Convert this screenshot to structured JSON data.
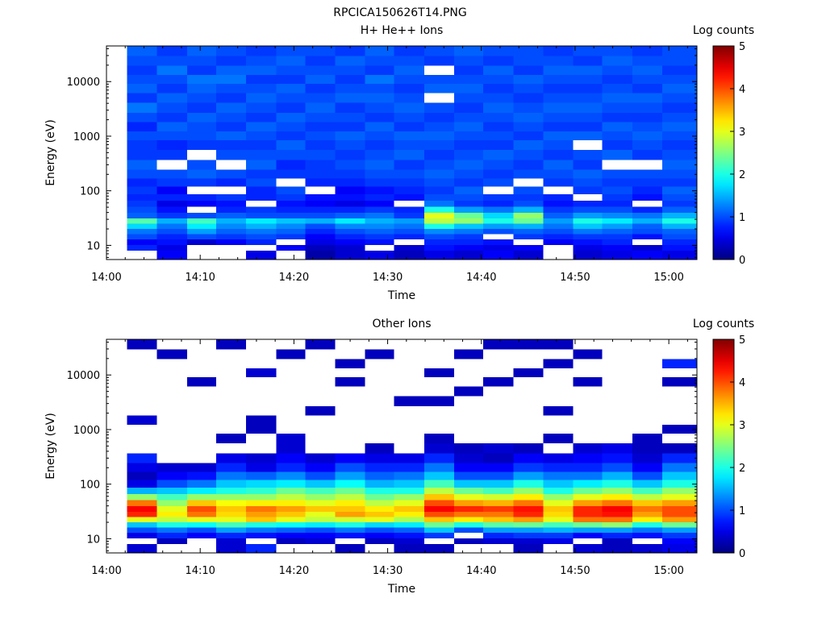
{
  "page_title": "RPCICA150626T14.PNG",
  "chart_data": [
    {
      "type": "heatmap",
      "title": "H+ He++ Ions",
      "xlabel": "Time",
      "ylabel": "Energy (eV)",
      "x_ticks": [
        "14:00",
        "14:10",
        "14:20",
        "14:30",
        "14:40",
        "14:50",
        "15:00"
      ],
      "y_ticks": [
        "10",
        "100",
        "1000",
        "10000"
      ],
      "y_scale": "log",
      "ylim": [
        5.5,
        45000
      ],
      "colorbar": {
        "label": "Log counts",
        "ticks": [
          "0",
          "1",
          "2",
          "3",
          "4",
          "5"
        ],
        "range": [
          0,
          5
        ]
      },
      "time_start": "14:00",
      "time_end": "15:03",
      "scan_start_times": [
        "14:02.2",
        "14:05.4",
        "14:08.6",
        "14:11.7",
        "14:14.9",
        "14:18.1",
        "14:21.2",
        "14:24.4",
        "14:27.6",
        "14:30.7",
        "14:33.9",
        "14:37.1",
        "14:40.2",
        "14:43.4",
        "14:46.6",
        "14:49.8",
        "14:52.9",
        "14:56.1",
        "14:59.3"
      ],
      "energy_levels_eV": [
        7,
        9,
        11.5,
        14.5,
        18,
        22.5,
        28,
        35,
        45,
        58,
        75,
        100,
        140,
        200,
        300,
        450,
        700,
        1000,
        1500,
        2200,
        3300,
        5000,
        7500,
        11000,
        16000,
        24000,
        36000
      ],
      "scans": [
        [
          null,
          0.8,
          0.6,
          1.0,
          1.2,
          1.7,
          2.3,
          1.1,
          1.0,
          0.9,
          0.8,
          0.9,
          0.8,
          1.0,
          1.1,
          0.9,
          0.9,
          1.0,
          0.8,
          1.0,
          1.2,
          0.9,
          1.1,
          1.0,
          0.9,
          1.0,
          1.1
        ],
        [
          0.6,
          0.5,
          0.7,
          0.8,
          1.0,
          1.2,
          1.5,
          0.9,
          0.7,
          0.5,
          0.8,
          0.6,
          0.9,
          1.0,
          null,
          0.9,
          0.8,
          1.0,
          1.1,
          0.9,
          1.0,
          1.1,
          0.9,
          1.0,
          1.2,
          1.0,
          0.9
        ],
        [
          null,
          null,
          0.4,
          1.0,
          1.4,
          1.8,
          2.2,
          1.0,
          null,
          0.6,
          0.8,
          null,
          0.9,
          1.1,
          1.0,
          null,
          0.9,
          1.0,
          1.0,
          1.1,
          0.9,
          1.0,
          1.1,
          1.2,
          0.9,
          1.0,
          1.1
        ],
        [
          null,
          null,
          0.6,
          0.9,
          1.1,
          1.3,
          1.5,
          1.1,
          0.8,
          0.7,
          0.9,
          null,
          0.8,
          1.0,
          null,
          1.0,
          0.9,
          1.1,
          0.9,
          1.0,
          1.1,
          0.9,
          1.0,
          1.2,
          1.1,
          0.9,
          1.0
        ],
        [
          0.5,
          null,
          0.8,
          1.0,
          1.2,
          1.5,
          1.8,
          1.0,
          0.9,
          null,
          0.8,
          0.8,
          1.0,
          0.9,
          1.1,
          1.0,
          0.9,
          1.0,
          1.1,
          0.9,
          1.0,
          1.1,
          1.0,
          0.9,
          1.1,
          1.0,
          0.9
        ],
        [
          null,
          0.6,
          null,
          0.9,
          1.1,
          1.3,
          1.6,
          1.0,
          0.8,
          0.7,
          0.9,
          1.0,
          null,
          0.9,
          0.8,
          1.0,
          1.1,
          0.9,
          1.0,
          1.1,
          0.9,
          1.0,
          1.1,
          0.9,
          1.0,
          1.1,
          1.0
        ],
        [
          0.2,
          0.3,
          0.5,
          0.6,
          0.8,
          1.0,
          1.5,
          1.0,
          0.8,
          0.6,
          0.7,
          null,
          0.8,
          0.9,
          0.9,
          1.0,
          0.9,
          1.0,
          0.9,
          1.0,
          1.1,
          1.0,
          0.9,
          1.1,
          1.0,
          0.9,
          1.0
        ],
        [
          0.4,
          0.4,
          0.6,
          0.8,
          1.0,
          1.3,
          1.8,
          1.1,
          0.8,
          0.5,
          0.7,
          0.6,
          0.8,
          0.9,
          1.0,
          0.9,
          1.0,
          1.1,
          0.9,
          1.0,
          0.9,
          1.1,
          1.0,
          0.9,
          1.0,
          1.1,
          0.9
        ],
        [
          0.5,
          null,
          0.7,
          0.9,
          1.1,
          1.3,
          1.5,
          1.2,
          0.9,
          0.6,
          0.8,
          0.7,
          0.9,
          1.0,
          1.1,
          1.0,
          0.9,
          1.0,
          1.1,
          0.9,
          1.0,
          1.1,
          1.0,
          1.2,
          0.9,
          1.0,
          1.1
        ],
        [
          0.3,
          0.4,
          null,
          0.8,
          1.0,
          1.2,
          1.4,
          0.9,
          0.8,
          null,
          0.7,
          0.8,
          0.9,
          1.0,
          0.9,
          1.1,
          1.0,
          1.1,
          0.9,
          1.0,
          1.1,
          1.0,
          0.9,
          1.0,
          1.1,
          1.0,
          0.9
        ],
        [
          0.5,
          0.7,
          0.8,
          1.0,
          1.3,
          2.0,
          2.8,
          3.0,
          2.0,
          1.2,
          1.0,
          0.9,
          1.0,
          1.1,
          1.0,
          0.9,
          1.0,
          1.1,
          1.0,
          0.9,
          1.0,
          null,
          1.1,
          1.0,
          null,
          0.9,
          1.0
        ],
        [
          0.4,
          0.6,
          0.8,
          0.9,
          1.2,
          1.6,
          2.6,
          2.4,
          1.4,
          0.9,
          1.0,
          1.1,
          0.9,
          1.0,
          1.1,
          1.0,
          0.9,
          1.0,
          1.1,
          1.0,
          0.9,
          1.0,
          1.1,
          1.0,
          0.9,
          1.0,
          1.1
        ],
        [
          0.6,
          0.5,
          0.7,
          null,
          1.0,
          1.4,
          2.0,
          1.7,
          1.2,
          0.8,
          0.9,
          null,
          1.0,
          0.9,
          1.0,
          1.1,
          0.9,
          1.0,
          0.9,
          1.0,
          1.1,
          1.0,
          0.9,
          1.0,
          1.1,
          0.9,
          1.0
        ],
        [
          0.4,
          0.6,
          null,
          0.9,
          1.1,
          1.5,
          2.4,
          2.6,
          1.5,
          1.0,
          0.9,
          1.0,
          null,
          1.0,
          0.9,
          1.0,
          1.1,
          0.9,
          1.0,
          1.1,
          1.0,
          0.9,
          1.0,
          1.1,
          0.9,
          1.0,
          1.0
        ],
        [
          null,
          null,
          0.6,
          0.8,
          1.0,
          1.2,
          1.4,
          1.1,
          0.9,
          0.7,
          0.8,
          null,
          0.9,
          1.0,
          1.1,
          0.9,
          1.0,
          1.1,
          0.9,
          1.0,
          1.1,
          1.0,
          0.9,
          1.0,
          1.1,
          1.0,
          0.9
        ],
        [
          0.4,
          0.5,
          0.7,
          0.9,
          1.2,
          1.6,
          2.0,
          1.4,
          1.0,
          0.8,
          null,
          0.9,
          1.0,
          1.1,
          0.9,
          1.0,
          null,
          1.1,
          0.9,
          1.0,
          1.1,
          1.0,
          0.9,
          1.0,
          1.1,
          0.9,
          1.0
        ],
        [
          0.5,
          0.6,
          0.8,
          0.9,
          1.1,
          1.4,
          1.8,
          1.3,
          1.0,
          0.8,
          0.9,
          1.0,
          0.9,
          1.0,
          null,
          1.1,
          0.9,
          1.0,
          1.1,
          0.9,
          1.0,
          1.1,
          1.0,
          0.9,
          1.0,
          1.1,
          1.0
        ],
        [
          0.6,
          0.4,
          null,
          0.7,
          1.0,
          1.1,
          1.5,
          1.2,
          0.8,
          null,
          0.7,
          0.8,
          0.9,
          1.0,
          null,
          0.9,
          1.0,
          1.1,
          1.0,
          0.9,
          1.0,
          1.1,
          0.9,
          1.0,
          1.1,
          1.0,
          0.9
        ],
        [
          0.5,
          0.7,
          0.8,
          1.0,
          1.1,
          1.5,
          2.0,
          1.5,
          1.1,
          0.9,
          1.0,
          1.1,
          0.9,
          1.0,
          1.1,
          1.0,
          0.9,
          1.0,
          1.1,
          1.0,
          0.9,
          1.0,
          1.1,
          1.0,
          0.9,
          1.0,
          1.0
        ]
      ]
    },
    {
      "type": "heatmap",
      "title": "Other Ions",
      "xlabel": "Time",
      "ylabel": "Energy (eV)",
      "x_ticks": [
        "14:00",
        "14:10",
        "14:20",
        "14:30",
        "14:40",
        "14:50",
        "15:00"
      ],
      "y_ticks": [
        "10",
        "100",
        "1000",
        "10000"
      ],
      "y_scale": "log",
      "ylim": [
        5.5,
        45000
      ],
      "colorbar": {
        "label": "Log counts",
        "ticks": [
          "0",
          "1",
          "2",
          "3",
          "4",
          "5"
        ],
        "range": [
          0,
          5
        ]
      },
      "time_start": "14:00",
      "time_end": "15:03",
      "scan_start_times": [
        "14:02.2",
        "14:05.4",
        "14:08.6",
        "14:11.7",
        "14:14.9",
        "14:18.1",
        "14:21.2",
        "14:24.4",
        "14:27.6",
        "14:30.7",
        "14:33.9",
        "14:37.1",
        "14:40.2",
        "14:43.4",
        "14:46.6",
        "14:49.8",
        "14:52.9",
        "14:56.1",
        "14:59.3"
      ],
      "energy_levels_eV": [
        7,
        9,
        11.5,
        14.5,
        18,
        22.5,
        28,
        35,
        45,
        58,
        75,
        100,
        140,
        200,
        300,
        450,
        700,
        1000,
        1500,
        2200,
        3300,
        5000,
        7500,
        11000,
        16000,
        24000,
        36000
      ],
      "scans": [
        [
          0.4,
          null,
          0.5,
          1.0,
          1.6,
          3.0,
          4.2,
          4.4,
          3.8,
          2.6,
          1.5,
          0.5,
          0.3,
          0.5,
          0.8,
          null,
          null,
          null,
          0.4,
          null,
          null,
          null,
          null,
          null,
          null,
          null,
          0.3
        ],
        [
          null,
          0.3,
          0.8,
          1.2,
          2.0,
          2.8,
          3.2,
          3.0,
          2.6,
          2.2,
          1.6,
          1.0,
          0.6,
          0.4,
          null,
          null,
          null,
          null,
          null,
          null,
          null,
          null,
          null,
          null,
          null,
          0.3,
          null
        ],
        [
          null,
          null,
          0.6,
          1.0,
          1.9,
          3.0,
          3.8,
          4.0,
          3.4,
          2.6,
          1.8,
          1.2,
          0.7,
          0.4,
          null,
          null,
          null,
          null,
          null,
          null,
          null,
          null,
          0.3,
          null,
          null,
          null,
          null
        ],
        [
          0.4,
          0.4,
          0.8,
          1.4,
          2.2,
          3.0,
          3.3,
          3.4,
          3.1,
          2.6,
          2.0,
          1.6,
          1.2,
          0.8,
          0.5,
          null,
          0.3,
          null,
          null,
          null,
          null,
          null,
          null,
          null,
          null,
          null,
          0.3
        ],
        [
          0.8,
          null,
          0.7,
          1.2,
          2.0,
          3.4,
          3.6,
          3.8,
          3.2,
          2.6,
          2.1,
          1.7,
          1.1,
          0.5,
          0.4,
          null,
          null,
          0.3,
          0.3,
          null,
          null,
          null,
          null,
          0.4,
          null,
          null,
          null
        ],
        [
          null,
          0.3,
          0.6,
          1.1,
          1.9,
          3.0,
          3.4,
          3.6,
          3.2,
          2.8,
          2.4,
          1.8,
          1.3,
          0.8,
          0.6,
          0.4,
          0.4,
          null,
          null,
          null,
          null,
          null,
          null,
          null,
          null,
          0.3,
          null
        ],
        [
          null,
          0.4,
          0.6,
          1.0,
          1.8,
          2.8,
          3.0,
          3.4,
          3.0,
          2.6,
          2.2,
          1.6,
          1.0,
          0.6,
          0.4,
          null,
          null,
          null,
          null,
          0.3,
          null,
          null,
          null,
          null,
          null,
          null,
          0.3
        ],
        [
          0.3,
          null,
          0.7,
          1.2,
          2.0,
          2.9,
          3.6,
          3.4,
          3.2,
          2.8,
          2.4,
          1.9,
          1.4,
          1.0,
          0.6,
          null,
          null,
          null,
          null,
          null,
          null,
          null,
          0.3,
          null,
          0.3,
          null,
          null
        ],
        [
          null,
          0.3,
          0.6,
          1.0,
          1.7,
          3.0,
          3.4,
          3.2,
          2.8,
          2.4,
          2.0,
          1.5,
          1.1,
          0.8,
          0.5,
          0.3,
          null,
          null,
          null,
          null,
          null,
          null,
          null,
          null,
          null,
          0.3,
          null
        ],
        [
          0.3,
          0.4,
          0.7,
          1.1,
          1.8,
          2.7,
          3.2,
          3.4,
          3.0,
          2.6,
          2.0,
          1.6,
          1.2,
          0.8,
          0.5,
          null,
          null,
          null,
          null,
          null,
          0.3,
          null,
          null,
          null,
          null,
          null,
          null
        ],
        [
          0.3,
          null,
          0.9,
          1.6,
          2.4,
          3.4,
          4.0,
          4.4,
          4.0,
          3.4,
          2.8,
          2.2,
          1.6,
          1.2,
          0.8,
          0.4,
          0.3,
          null,
          null,
          null,
          0.3,
          null,
          null,
          0.3,
          null,
          null,
          null
        ],
        [
          null,
          0.3,
          null,
          1.0,
          2.0,
          3.2,
          3.8,
          4.2,
          3.6,
          3.0,
          2.4,
          1.6,
          1.0,
          0.6,
          0.4,
          0.3,
          null,
          null,
          null,
          null,
          null,
          0.3,
          null,
          null,
          null,
          0.3,
          null
        ],
        [
          null,
          0.4,
          0.8,
          1.4,
          2.3,
          3.4,
          3.8,
          4.1,
          3.5,
          2.9,
          2.2,
          1.6,
          1.0,
          0.6,
          0.3,
          0.4,
          null,
          null,
          null,
          null,
          null,
          null,
          0.3,
          null,
          null,
          null,
          0.3
        ],
        [
          0.3,
          0.4,
          0.9,
          1.4,
          2.4,
          3.6,
          4.2,
          4.3,
          3.8,
          3.2,
          2.6,
          2.0,
          1.4,
          0.9,
          0.6,
          0.3,
          null,
          null,
          null,
          null,
          null,
          null,
          null,
          0.3,
          null,
          null,
          0.3
        ],
        [
          null,
          0.5,
          0.9,
          1.5,
          2.2,
          3.0,
          3.3,
          3.4,
          3.0,
          2.6,
          2.0,
          1.6,
          1.2,
          0.8,
          0.5,
          null,
          0.3,
          null,
          null,
          0.3,
          null,
          null,
          null,
          null,
          0.3,
          null,
          0.3
        ],
        [
          0.4,
          null,
          0.6,
          1.4,
          2.4,
          3.8,
          4.2,
          4.2,
          3.6,
          3.0,
          2.4,
          1.8,
          1.2,
          0.8,
          0.6,
          0.4,
          null,
          null,
          null,
          null,
          null,
          null,
          0.3,
          null,
          null,
          0.3,
          null
        ],
        [
          0.3,
          0.3,
          0.8,
          1.4,
          2.6,
          3.8,
          4.3,
          4.4,
          3.8,
          3.2,
          2.6,
          2.0,
          1.5,
          1.0,
          0.7,
          0.5,
          null,
          null,
          null,
          null,
          null,
          null,
          null,
          null,
          null,
          null,
          null
        ],
        [
          0.4,
          null,
          0.7,
          1.2,
          2.0,
          3.2,
          3.6,
          3.8,
          3.4,
          2.8,
          2.2,
          1.6,
          1.0,
          0.6,
          0.4,
          0.3,
          0.3,
          null,
          null,
          null,
          null,
          null,
          null,
          null,
          null,
          null,
          null
        ],
        [
          0.5,
          0.6,
          0.9,
          1.4,
          2.4,
          3.6,
          4.0,
          4.0,
          3.6,
          3.0,
          2.6,
          2.0,
          1.6,
          1.2,
          0.8,
          0.3,
          null,
          0.3,
          null,
          null,
          null,
          null,
          0.3,
          null,
          0.8,
          null,
          null
        ]
      ]
    }
  ]
}
